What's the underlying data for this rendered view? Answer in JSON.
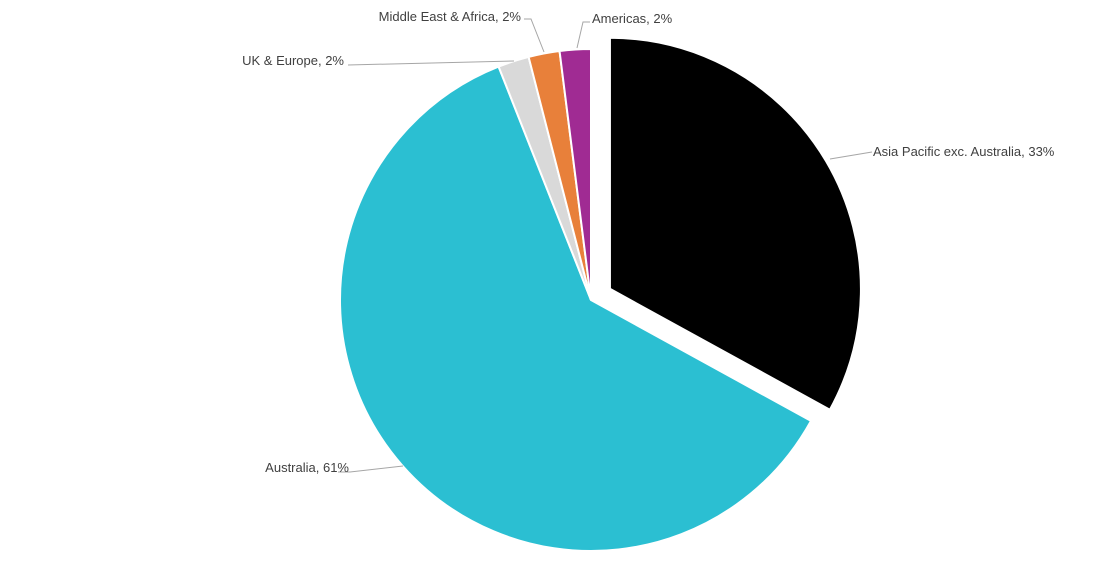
{
  "chart_data": {
    "type": "pie",
    "title": "",
    "start_angle_deg": 0,
    "direction": "clockwise",
    "legend": "none",
    "slices": [
      {
        "label": "Asia Pacific exc. Australia",
        "value": 33,
        "display": "Asia Pacific exc. Australia, 33%",
        "color": "#000000",
        "exploded": true
      },
      {
        "label": "Australia",
        "value": 61,
        "display": "Australia, 61%",
        "color": "#2BBFD2",
        "exploded": false
      },
      {
        "label": "UK & Europe",
        "value": 2,
        "display": "UK & Europe, 2%",
        "color": "#D9D9D9",
        "exploded": false
      },
      {
        "label": "Middle East & Africa",
        "value": 2,
        "display": "Middle East & Africa, 2%",
        "color": "#E8803A",
        "exploded": false
      },
      {
        "label": "Americas",
        "value": 2,
        "display": "Americas, 2%",
        "color": "#A02B93",
        "exploded": false
      }
    ]
  }
}
